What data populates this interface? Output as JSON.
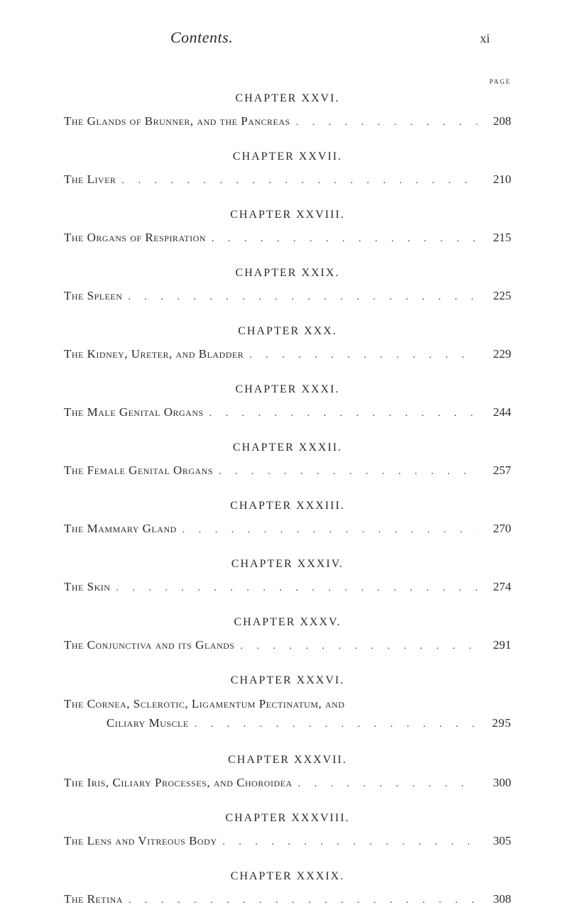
{
  "header": {
    "title": "Contents.",
    "page_number": "xi",
    "page_label": "page"
  },
  "chapters": [
    {
      "heading": "CHAPTER XXVI.",
      "entry_title": "The Glands of Brunner, and the Pancreas",
      "entry_page": "208"
    },
    {
      "heading": "CHAPTER XXVII.",
      "entry_title": "The Liver",
      "entry_page": "210"
    },
    {
      "heading": "CHAPTER XXVIII.",
      "entry_title": "The Organs of Respiration",
      "entry_page": "215"
    },
    {
      "heading": "CHAPTER XXIX.",
      "entry_title": "The Spleen",
      "entry_page": "225"
    },
    {
      "heading": "CHAPTER XXX.",
      "entry_title": "The Kidney, Ureter, and Bladder",
      "entry_page": "229"
    },
    {
      "heading": "CHAPTER XXXI.",
      "entry_title": "The Male Genital Organs",
      "entry_page": "244"
    },
    {
      "heading": "CHAPTER XXXII.",
      "entry_title": "The Female Genital Organs",
      "entry_page": "257"
    },
    {
      "heading": "CHAPTER XXXIII.",
      "entry_title": "The Mammary Gland",
      "entry_page": "270"
    },
    {
      "heading": "CHAPTER XXXIV.",
      "entry_title": "The Skin",
      "entry_page": "274"
    },
    {
      "heading": "CHAPTER XXXV.",
      "entry_title": "The Conjunctiva and its Glands",
      "entry_page": "291"
    },
    {
      "heading": "CHAPTER XXXVI.",
      "entry_line1": "The Cornea, Sclerotic, Ligamentum Pectinatum, and",
      "entry_line2": "Ciliary Muscle",
      "entry_page": "295"
    },
    {
      "heading": "CHAPTER XXXVII.",
      "entry_title": "The Iris, Ciliary Processes, and Choroidea",
      "entry_page": "300"
    },
    {
      "heading": "CHAPTER XXXVIII.",
      "entry_title": "The Lens and Vitreous Body",
      "entry_page": "305"
    },
    {
      "heading": "CHAPTER XXXIX.",
      "entry_title": "The Retina",
      "entry_page": "308"
    }
  ],
  "dots_fill": ". . . . . . . . . . . . . . . . . . . . . . . ."
}
